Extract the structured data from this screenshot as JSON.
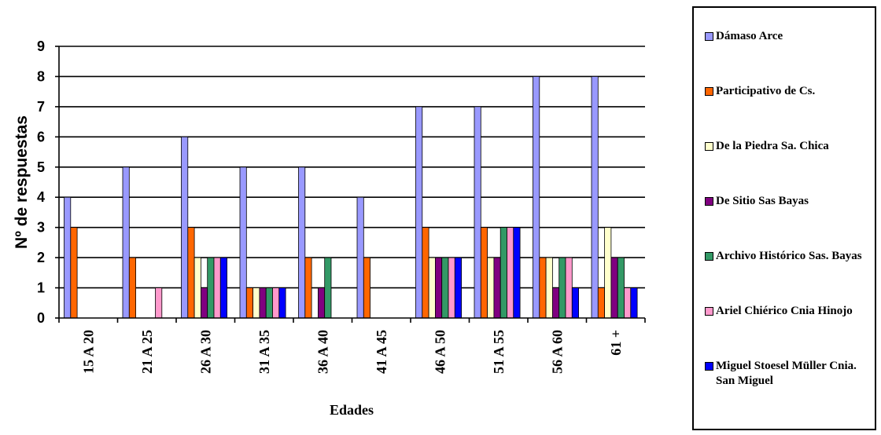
{
  "chart_data": {
    "type": "bar",
    "ylabel": "Nº de respuestas",
    "xlabel": "Edades",
    "ylim": [
      0,
      9
    ],
    "yticks": [
      "0",
      "1",
      "2",
      "3",
      "4",
      "5",
      "6",
      "7",
      "8",
      "9"
    ],
    "grid": "horizontal",
    "legend_position": "right",
    "categories": [
      "15 A 20",
      "21 A 25",
      "26 A 30",
      "31 A 35",
      "36 A 40",
      "41 A 45",
      "46 A 50",
      "51 A 55",
      "56 A 60",
      "61 +"
    ],
    "series": [
      {
        "name": "Dámaso Arce",
        "color": "#9999ff",
        "values": [
          4,
          5,
          6,
          5,
          5,
          4,
          7,
          7,
          8,
          8
        ]
      },
      {
        "name": "Participativo de Cs.",
        "color": "#ff6600",
        "values": [
          3,
          2,
          3,
          1,
          2,
          2,
          3,
          3,
          2,
          1
        ]
      },
      {
        "name": "De la Piedra Sa. Chica",
        "color": "#ffffcc",
        "values": [
          0,
          0,
          2,
          1,
          0,
          0,
          2,
          2,
          2,
          3
        ]
      },
      {
        "name": "De Sitio Sas Bayas",
        "color": "#800080",
        "values": [
          0,
          0,
          1,
          1,
          1,
          0,
          2,
          2,
          1,
          2
        ]
      },
      {
        "name": "Archivo Histórico Sas. Bayas",
        "color": "#339966",
        "values": [
          0,
          0,
          2,
          1,
          2,
          0,
          2,
          3,
          2,
          2
        ]
      },
      {
        "name": "Ariel Chiérico Cnia Hinojo",
        "color": "#ff99cc",
        "values": [
          0,
          1,
          2,
          1,
          0,
          0,
          2,
          3,
          2,
          1
        ]
      },
      {
        "name": "Miguel Stoesel Müller Cnia. San Miguel",
        "color": "#0000ff",
        "values": [
          0,
          0,
          2,
          1,
          0,
          0,
          2,
          3,
          1,
          1
        ]
      }
    ]
  }
}
